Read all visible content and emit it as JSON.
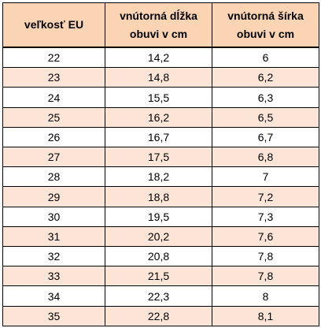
{
  "table": {
    "headers": [
      [
        "veľkosť EU"
      ],
      [
        "vnútorná dĺžka",
        "obuvi v cm"
      ],
      [
        "vnútorná šírka",
        "obuvi v cm"
      ]
    ],
    "rows": [
      [
        "22",
        "14,2",
        "6"
      ],
      [
        "23",
        "14,8",
        "6,2"
      ],
      [
        "24",
        "15,5",
        "6,3"
      ],
      [
        "25",
        "16,2",
        "6,5"
      ],
      [
        "26",
        "16,7",
        "6,7"
      ],
      [
        "27",
        "17,5",
        "6,8"
      ],
      [
        "28",
        "18,2",
        "7"
      ],
      [
        "29",
        "18,8",
        "7,2"
      ],
      [
        "30",
        "19,5",
        "7,3"
      ],
      [
        "31",
        "20,2",
        "7,6"
      ],
      [
        "32",
        "20,8",
        "7,8"
      ],
      [
        "33",
        "21,5",
        "7,8"
      ],
      [
        "34",
        "22,3",
        "8"
      ],
      [
        "35",
        "22,8",
        "8,1"
      ]
    ],
    "colors": {
      "header_fill": "#fbd4b4",
      "stripe_fill": "#fce4d6",
      "row_fill": "#ffffff",
      "border": "#000000"
    }
  }
}
